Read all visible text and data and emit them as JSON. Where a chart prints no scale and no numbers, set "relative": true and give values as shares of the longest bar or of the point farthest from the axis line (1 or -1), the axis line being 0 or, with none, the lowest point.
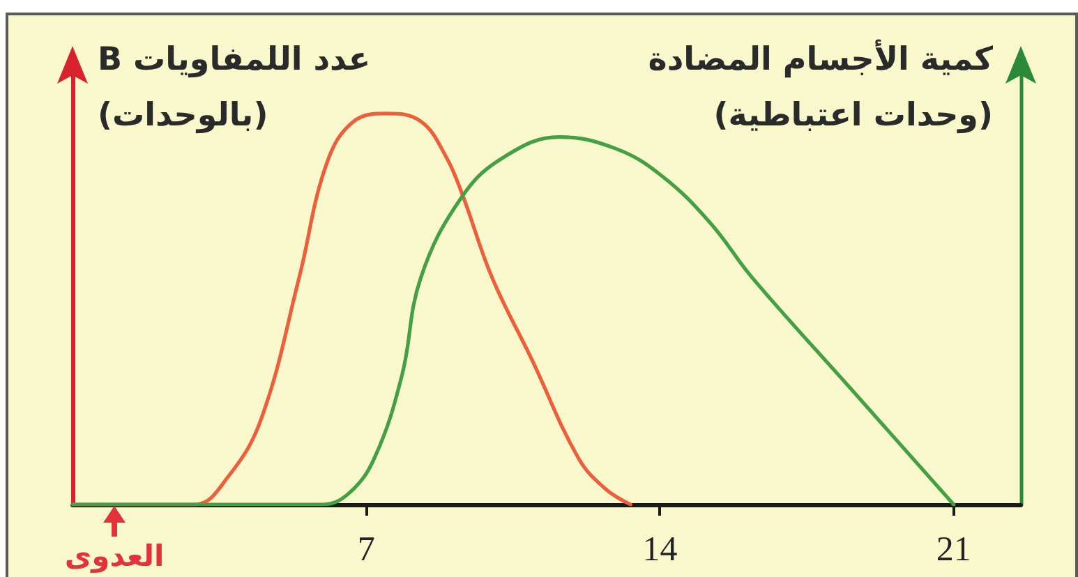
{
  "chart_data": {
    "type": "line",
    "relative": true,
    "ylabel": "عدد اللمفاويات B\n(بالوحدات)",
    "y2label": "كمية الأجسام المضادة\n(وحدات اعتباطية)",
    "xlim": [
      0,
      22.6
    ],
    "xticks": [
      7,
      14,
      21
    ],
    "series": [
      {
        "color": "#ec5f3a",
        "x": [
          0,
          2.9,
          3.7,
          4.5,
          5.4,
          6.05,
          6.7,
          7.5,
          8.3,
          8.9,
          9.3,
          10.0,
          10.95,
          12.05,
          12.7,
          13.3
        ],
        "values": [
          0,
          0,
          0.07,
          0.22,
          0.58,
          0.87,
          0.98,
          1,
          0.98,
          0.89,
          0.79,
          0.58,
          0.37,
          0.12,
          0.04,
          0
        ]
      },
      {
        "color": "#45a045",
        "x": [
          0,
          5.95,
          6.6,
          7.2,
          7.85,
          8.3,
          9.3,
          10.3,
          11.6,
          12.95,
          14.05,
          15.2,
          16.2,
          18.6,
          21
        ],
        "values": [
          0,
          0,
          0.03,
          0.12,
          0.33,
          0.58,
          0.79,
          0.89,
          0.94,
          0.91,
          0.84,
          0.72,
          0.58,
          0.29,
          0
        ]
      }
    ],
    "annotations": [
      {
        "text": "العدوى",
        "x": 1,
        "y": 0
      }
    ],
    "marker": "none",
    "line_style": "solid"
  }
}
